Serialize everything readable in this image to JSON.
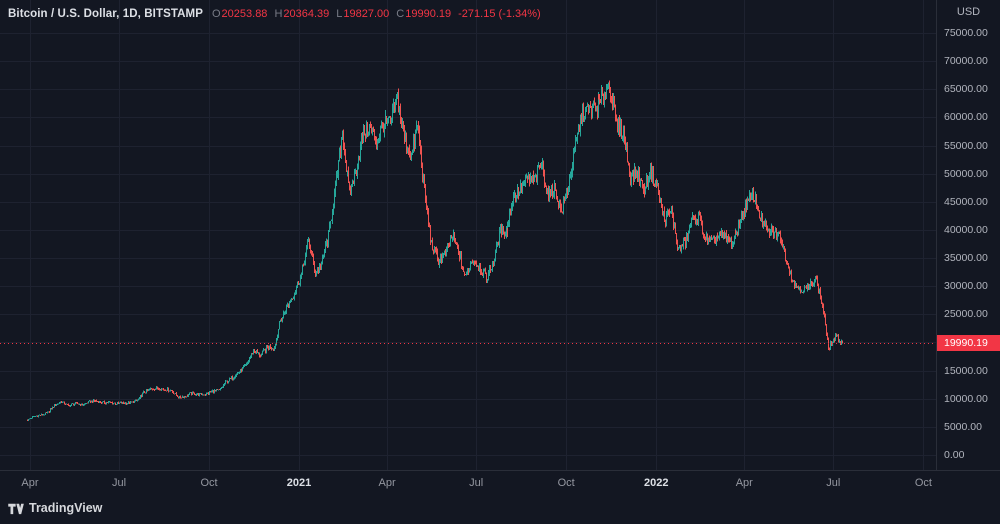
{
  "legend": {
    "title": "Bitcoin / U.S. Dollar, 1D, BITSTAMP",
    "ohlc": [
      {
        "key": "O",
        "value": "20253.88"
      },
      {
        "key": "H",
        "value": "20364.39"
      },
      {
        "key": "L",
        "value": "19827.00"
      },
      {
        "key": "C",
        "value": "19990.19"
      }
    ],
    "change": "-271.15 (-1.34%)"
  },
  "price_axis": {
    "unit": "USD",
    "last_price_label": "19990.19"
  },
  "branding": {
    "logo_text": "TradingView"
  },
  "colors": {
    "background": "#131722",
    "grid": "#1e2230",
    "up": "#26a69a",
    "down": "#ef5350",
    "last_price_red": "#f23645",
    "axis_text": "#b2b5be",
    "axis_text_bright": "#dde0e6"
  },
  "chart_data": {
    "type": "candlestick",
    "title": "Bitcoin / U.S. Dollar",
    "exchange": "BITSTAMP",
    "interval": "1D",
    "unit": "USD",
    "grid": true,
    "ylim": [
      0,
      75000
    ],
    "y_ticks": [
      0,
      5000,
      10000,
      15000,
      20000,
      25000,
      30000,
      35000,
      40000,
      45000,
      50000,
      55000,
      60000,
      65000,
      70000,
      75000
    ],
    "start_date_estimate": "2020-03-29",
    "points_interval_days": 7,
    "weekly_closes": [
      6250,
      6870,
      7100,
      7580,
      8790,
      9550,
      8720,
      9170,
      8900,
      9450,
      9650,
      9300,
      9350,
      9100,
      9230,
      9280,
      9700,
      11050,
      11700,
      11900,
      11650,
      11500,
      10250,
      10450,
      10950,
      10700,
      10800,
      11300,
      11500,
      13050,
      13800,
      14830,
      15950,
      18650,
      17700,
      19150,
      19150,
      23850,
      26500,
      28950,
      32100,
      38200,
      32250,
      34300,
      38900,
      47200,
      57400,
      46300,
      50950,
      57350,
      58100,
      55850,
      58750,
      59000,
      63500,
      56200,
      53300,
      58800,
      46750,
      37300,
      34600,
      35650,
      39000,
      35550,
      31600,
      34700,
      33500,
      31400,
      34300,
      39850,
      39900,
      46000,
      47100,
      48900,
      48800,
      51800,
      46000,
      47300,
      43200,
      47700,
      54950,
      60900,
      61300,
      61850,
      63300,
      66000,
      58600,
      57300,
      49400,
      50100,
      46700,
      50800,
      47300,
      41900,
      43100,
      36450,
      37900,
      41500,
      42400,
      38400,
      37700,
      39200,
      38400,
      37800,
      41300,
      44540,
      46300,
      42300,
      39700,
      39450,
      38600,
      34100,
      30300,
      29450,
      29500,
      31700,
      26600,
      19000,
      21000,
      19990
    ],
    "last_candle": {
      "open": 20253.88,
      "high": 20364.39,
      "low": 19827.0,
      "close": 19990.19,
      "change": -271.15,
      "change_pct": -1.34
    },
    "x_labels": [
      {
        "text": "Apr",
        "week": 0.43,
        "major": false
      },
      {
        "text": "Jul",
        "week": 13.43,
        "major": false
      },
      {
        "text": "Oct",
        "week": 26.57,
        "major": false
      },
      {
        "text": "2021",
        "week": 39.71,
        "major": true
      },
      {
        "text": "Apr",
        "week": 52.57,
        "major": false
      },
      {
        "text": "Jul",
        "week": 65.57,
        "major": false
      },
      {
        "text": "Oct",
        "week": 78.71,
        "major": false
      },
      {
        "text": "2022",
        "week": 91.86,
        "major": true
      },
      {
        "text": "Apr",
        "week": 104.71,
        "major": false
      },
      {
        "text": "Jul",
        "week": 117.71,
        "major": false
      },
      {
        "text": "Oct",
        "week": 130.86,
        "major": false
      }
    ]
  }
}
